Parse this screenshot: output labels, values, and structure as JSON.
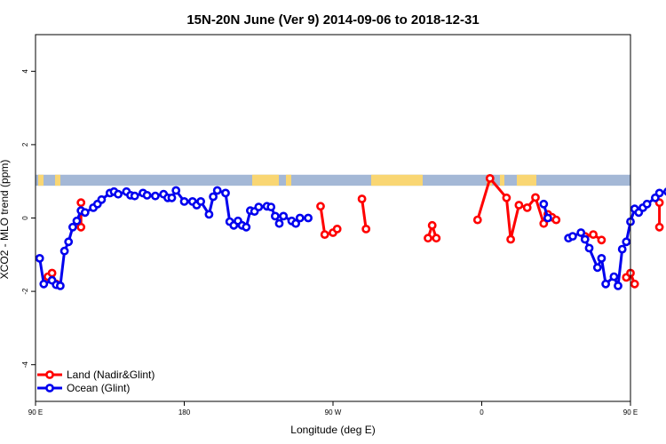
{
  "chart_data": {
    "type": "line",
    "title": "15N-20N June (Ver 9)   2014-09-06 to 2018-12-31",
    "xlabel": "Longitude (deg E)",
    "ylabel": "XCO2 - MLO trend (ppm)",
    "xlim": [
      90,
      450
    ],
    "ylim": [
      -5,
      5
    ],
    "x_ticks": [
      {
        "value": 90,
        "label": "90 E"
      },
      {
        "value": 180,
        "label": "180"
      },
      {
        "value": 270,
        "label": "90 W"
      },
      {
        "value": 360,
        "label": "0"
      },
      {
        "value": 450,
        "label": "90 E"
      },
      {
        "value": 540,
        "label": "180"
      }
    ],
    "y_ticks": [
      -4,
      -2,
      0,
      2,
      4
    ],
    "legend": {
      "position": "bottom-left",
      "entries": [
        {
          "name": "Land (Nadir&Glint)",
          "color": "#ff0000"
        },
        {
          "name": "Ocean (Glint)",
          "color": "#0000ee"
        }
      ]
    },
    "band": {
      "y_min": 0.88,
      "y_max": 1.18,
      "ocean_color": "#a4b8d6",
      "land_color": "#f9d673"
    },
    "series": [
      {
        "name": "Land (Nadir&Glint)",
        "color": "#ff0000",
        "segments": [
          [
            [
              97.5,
              -1.6
            ],
            [
              100,
              -1.5
            ],
            [
              102.5,
              -1.8
            ]
          ],
          [
            [
              117.5,
              -0.25
            ],
            [
              117.5,
              0.42
            ]
          ],
          [
            [
              262.5,
              0.32
            ],
            [
              265,
              -0.45
            ],
            [
              270,
              -0.4
            ],
            [
              272.5,
              -0.3
            ]
          ],
          [
            [
              287.5,
              0.52
            ],
            [
              290,
              -0.3
            ]
          ],
          [
            [
              327.5,
              -0.55
            ],
            [
              330,
              -0.2
            ],
            [
              332.5,
              -0.55
            ]
          ],
          [
            [
              357.5,
              -0.05
            ],
            [
              365,
              1.08
            ],
            [
              375,
              0.55
            ],
            [
              377.5,
              -0.58
            ],
            [
              382.5,
              0.35
            ],
            [
              387.5,
              0.28
            ],
            [
              392.5,
              0.56
            ],
            [
              397.5,
              -0.15
            ],
            [
              400,
              0.1
            ],
            [
              402.5,
              0.02
            ],
            [
              405,
              -0.05
            ]
          ],
          [
            [
              422.5,
              -0.5
            ],
            [
              427.5,
              -0.45
            ],
            [
              432.5,
              -0.6
            ]
          ],
          [
            [
              447.5,
              -1.62
            ],
            [
              450,
              -1.5
            ],
            [
              452.5,
              -1.8
            ]
          ],
          [
            [
              467.5,
              -0.25
            ],
            [
              467.5,
              0.42
            ]
          ]
        ]
      },
      {
        "name": "Ocean (Glint)",
        "color": "#0000ee",
        "segments": [
          [
            [
              92.5,
              -1.1
            ],
            [
              95,
              -1.8
            ],
            [
              100,
              -1.7
            ],
            [
              102.5,
              -1.82
            ],
            [
              105,
              -1.85
            ],
            [
              107.5,
              -0.9
            ],
            [
              110,
              -0.65
            ],
            [
              112.5,
              -0.25
            ],
            [
              115,
              -0.08
            ],
            [
              117.5,
              0.2
            ],
            [
              120,
              0.15
            ],
            [
              125,
              0.28
            ],
            [
              127.5,
              0.38
            ],
            [
              130,
              0.5
            ],
            [
              135,
              0.68
            ],
            [
              137.5,
              0.72
            ],
            [
              140,
              0.65
            ],
            [
              145,
              0.72
            ],
            [
              147.5,
              0.62
            ],
            [
              150,
              0.6
            ],
            [
              155,
              0.68
            ],
            [
              157.5,
              0.62
            ],
            [
              162.5,
              0.6
            ],
            [
              167.5,
              0.65
            ],
            [
              170,
              0.55
            ],
            [
              172.5,
              0.55
            ],
            [
              175,
              0.75
            ],
            [
              180,
              0.45
            ],
            [
              185,
              0.45
            ],
            [
              187.5,
              0.35
            ],
            [
              190,
              0.45
            ],
            [
              195,
              0.1
            ],
            [
              197.5,
              0.58
            ],
            [
              200,
              0.75
            ],
            [
              205,
              0.68
            ],
            [
              207.5,
              -0.1
            ],
            [
              210,
              -0.2
            ],
            [
              212.5,
              -0.08
            ],
            [
              215,
              -0.2
            ],
            [
              217.5,
              -0.25
            ],
            [
              220,
              0.2
            ],
            [
              222.5,
              0.18
            ],
            [
              225,
              0.3
            ],
            [
              230,
              0.32
            ],
            [
              232.5,
              0.3
            ],
            [
              235,
              0.05
            ],
            [
              237.5,
              -0.15
            ],
            [
              240,
              0.05
            ],
            [
              245,
              -0.08
            ],
            [
              247.5,
              -0.15
            ],
            [
              250,
              0.0
            ],
            [
              255,
              0.0
            ]
          ],
          [
            [
              397.5,
              0.38
            ],
            [
              400,
              0.0
            ]
          ],
          [
            [
              412.5,
              -0.55
            ],
            [
              415,
              -0.5
            ],
            [
              420,
              -0.4
            ],
            [
              422.5,
              -0.58
            ],
            [
              425,
              -0.82
            ],
            [
              430,
              -1.35
            ],
            [
              432.5,
              -1.1
            ],
            [
              435,
              -1.8
            ],
            [
              440,
              -1.6
            ],
            [
              442.5,
              -1.85
            ],
            [
              445,
              -0.85
            ],
            [
              447.5,
              -0.65
            ],
            [
              450,
              -0.1
            ],
            [
              452.5,
              0.25
            ],
            [
              455,
              0.15
            ],
            [
              457.5,
              0.28
            ],
            [
              460,
              0.38
            ],
            [
              465,
              0.55
            ],
            [
              467.5,
              0.68
            ],
            [
              472.5,
              0.72
            ],
            [
              475,
              0.65
            ],
            [
              480,
              0.72
            ],
            [
              482.5,
              0.62
            ],
            [
              487.5,
              0.62
            ]
          ]
        ]
      }
    ]
  }
}
